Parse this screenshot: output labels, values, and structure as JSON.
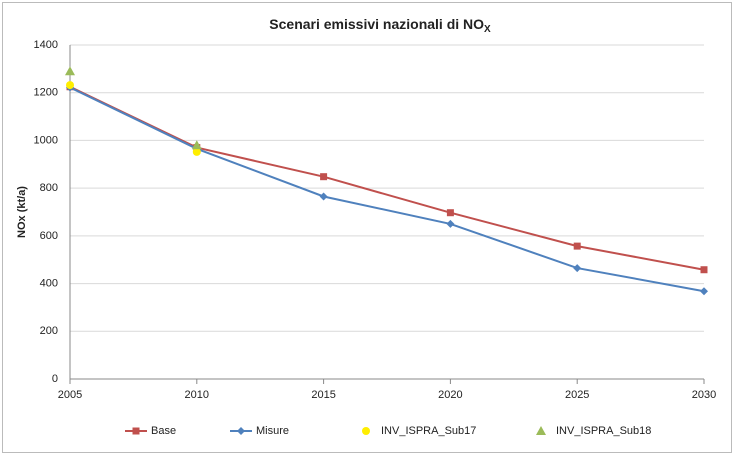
{
  "chart_data": {
    "type": "line",
    "title": "Scenari emissivi nazionali di NO",
    "title_subscript": "X",
    "y_label": "NOx (kt/a)",
    "x": [
      2005,
      2010,
      2015,
      2020,
      2025,
      2030
    ],
    "xlim": [
      2005,
      2030
    ],
    "xticks": [
      2005,
      2010,
      2015,
      2020,
      2025,
      2030
    ],
    "ylim": [
      0,
      1400
    ],
    "yticks": [
      0,
      200,
      400,
      600,
      800,
      1000,
      1200,
      1400
    ],
    "grid": true,
    "legend": "bottom",
    "series": [
      {
        "name": "Base",
        "color": "#c0504d",
        "marker": "square",
        "line": true,
        "values": [
          1225,
          970,
          848,
          697,
          557,
          458
        ]
      },
      {
        "name": "Misure",
        "color": "#4f81bd",
        "marker": "diamond",
        "line": true,
        "values": [
          1222,
          965,
          765,
          650,
          465,
          368
        ]
      },
      {
        "name": "INV_ISPRA_Sub17",
        "color": "#ffee00",
        "marker": "circle",
        "line": false,
        "values": [
          1232,
          952,
          null,
          null,
          null,
          null
        ]
      },
      {
        "name": "INV_ISPRA_Sub18",
        "color": "#9bbb59",
        "marker": "triangle",
        "line": false,
        "values": [
          1290,
          980,
          null,
          null,
          null,
          null
        ]
      }
    ]
  }
}
